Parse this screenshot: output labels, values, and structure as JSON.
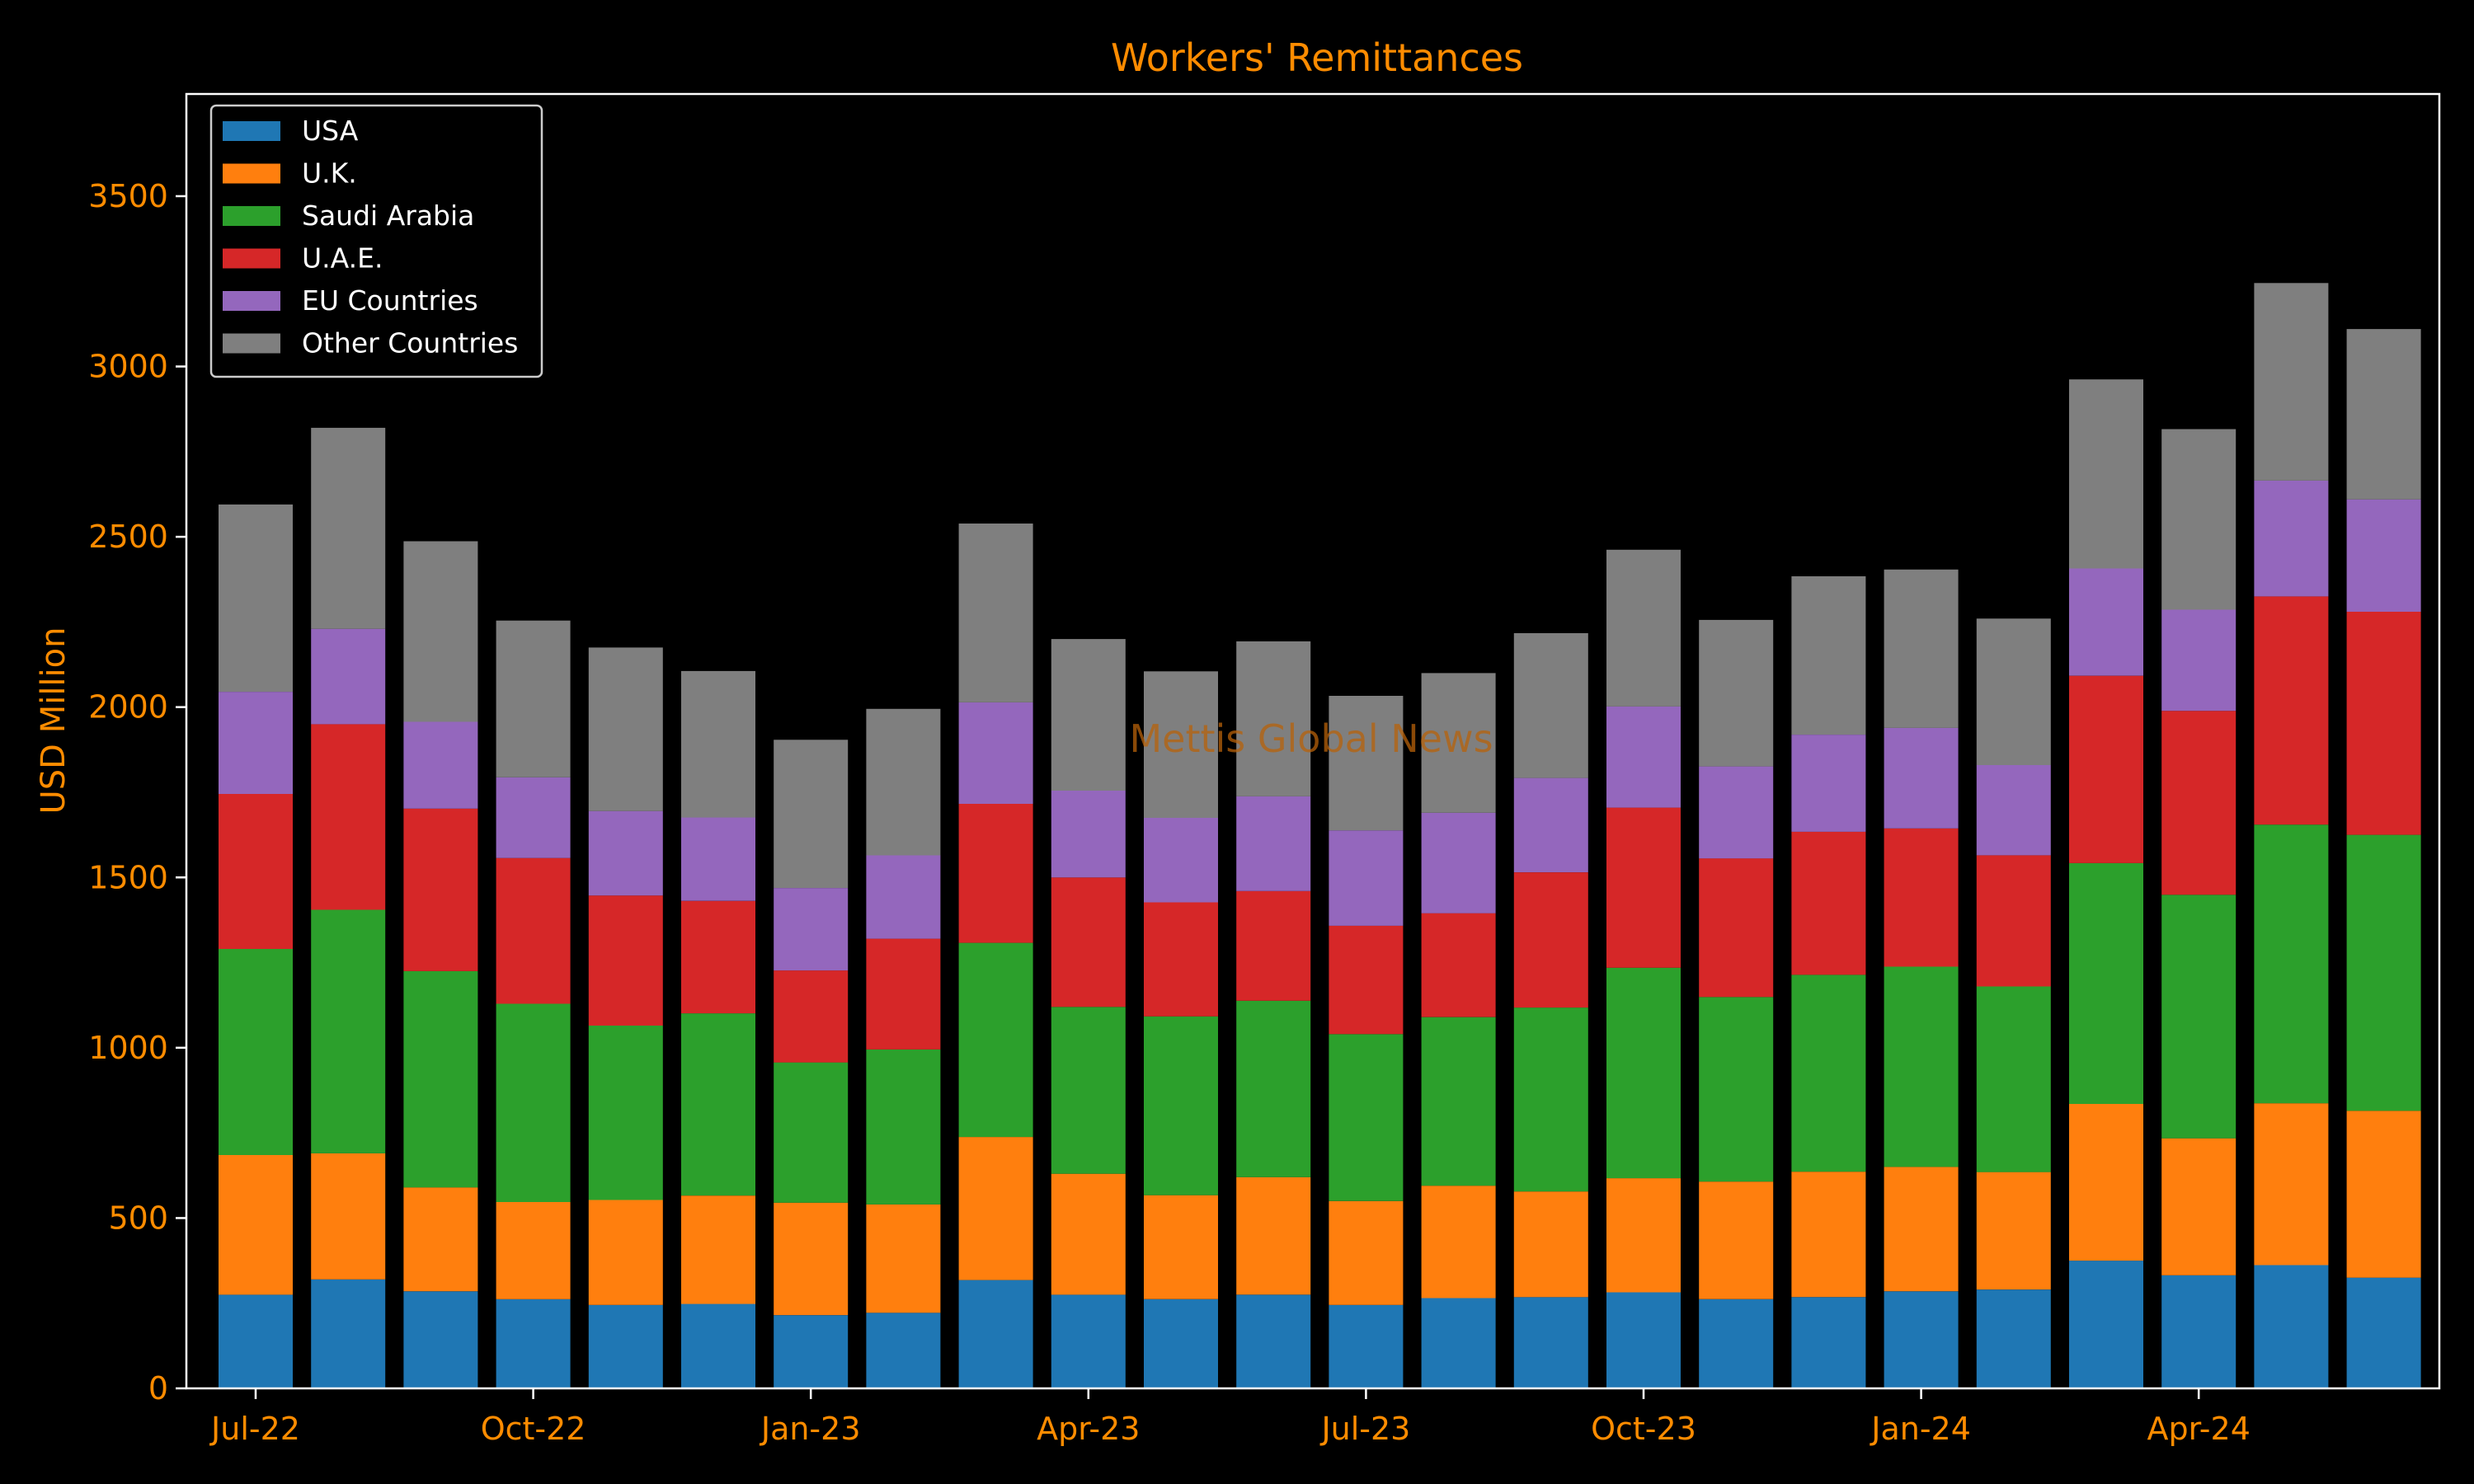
{
  "chart_data": {
    "type": "bar",
    "stacked": true,
    "title": "Workers' Remittances",
    "ylabel": "USD Million",
    "xlabel": "",
    "watermark": "Mettis Global News",
    "ylim": [
      0,
      3800
    ],
    "yticks": [
      0,
      500,
      1000,
      1500,
      2000,
      2500,
      3000,
      3500
    ],
    "xtick_labels": [
      {
        "index": 0,
        "label": "Jul-22"
      },
      {
        "index": 3,
        "label": "Oct-22"
      },
      {
        "index": 6,
        "label": "Jan-23"
      },
      {
        "index": 9,
        "label": "Apr-23"
      },
      {
        "index": 12,
        "label": "Jul-23"
      },
      {
        "index": 15,
        "label": "Oct-23"
      },
      {
        "index": 18,
        "label": "Jan-24"
      },
      {
        "index": 21,
        "label": "Apr-24"
      }
    ],
    "categories": [
      "Jul-22",
      "Aug-22",
      "Sep-22",
      "Oct-22",
      "Nov-22",
      "Dec-22",
      "Jan-23",
      "Feb-23",
      "Mar-23",
      "Apr-23",
      "May-23",
      "Jun-23",
      "Jul-23",
      "Aug-23",
      "Sep-23",
      "Oct-23",
      "Nov-23",
      "Dec-23",
      "Jan-24",
      "Feb-24",
      "Mar-24",
      "Apr-24",
      "May-24",
      "Jun-24"
    ],
    "legend_position": "top-left",
    "grid": false,
    "series": [
      {
        "name": "USA",
        "color": "#1f77b4",
        "values": [
          275,
          320,
          285,
          262,
          245,
          248,
          215,
          222,
          318,
          275,
          262,
          275,
          245,
          265,
          268,
          282,
          262,
          268,
          285,
          290,
          375,
          332,
          362,
          325
        ]
      },
      {
        "name": "U.K.",
        "color": "#ff7f0e",
        "values": [
          410,
          370,
          305,
          285,
          308,
          318,
          330,
          318,
          420,
          355,
          305,
          345,
          305,
          330,
          310,
          335,
          345,
          368,
          365,
          345,
          460,
          402,
          475,
          490
        ]
      },
      {
        "name": "Saudi Arabia",
        "color": "#2ca02c",
        "values": [
          605,
          715,
          635,
          582,
          512,
          535,
          412,
          455,
          570,
          490,
          525,
          518,
          490,
          495,
          540,
          618,
          542,
          578,
          588,
          545,
          707,
          715,
          818,
          810
        ]
      },
      {
        "name": "U.A.E.",
        "color": "#d62728",
        "values": [
          455,
          545,
          477,
          428,
          382,
          330,
          270,
          325,
          408,
          380,
          335,
          322,
          318,
          305,
          397,
          470,
          407,
          420,
          406,
          385,
          550,
          540,
          670,
          655
        ]
      },
      {
        "name": "EU Countries",
        "color": "#9467bd",
        "values": [
          300,
          280,
          255,
          237,
          248,
          245,
          242,
          245,
          298,
          255,
          248,
          278,
          280,
          295,
          277,
          297,
          270,
          285,
          295,
          265,
          315,
          297,
          340,
          330
        ]
      },
      {
        "name": "Other Countries",
        "color": "#7f7f7f",
        "values": [
          550,
          590,
          530,
          460,
          480,
          430,
          435,
          430,
          525,
          445,
          430,
          455,
          395,
          410,
          425,
          460,
          430,
          465,
          465,
          430,
          555,
          530,
          580,
          500
        ]
      }
    ]
  },
  "colors": {
    "background": "#000000",
    "axis": "#ffffff",
    "text": "#ff8c00",
    "legend_text": "#ffffff"
  }
}
